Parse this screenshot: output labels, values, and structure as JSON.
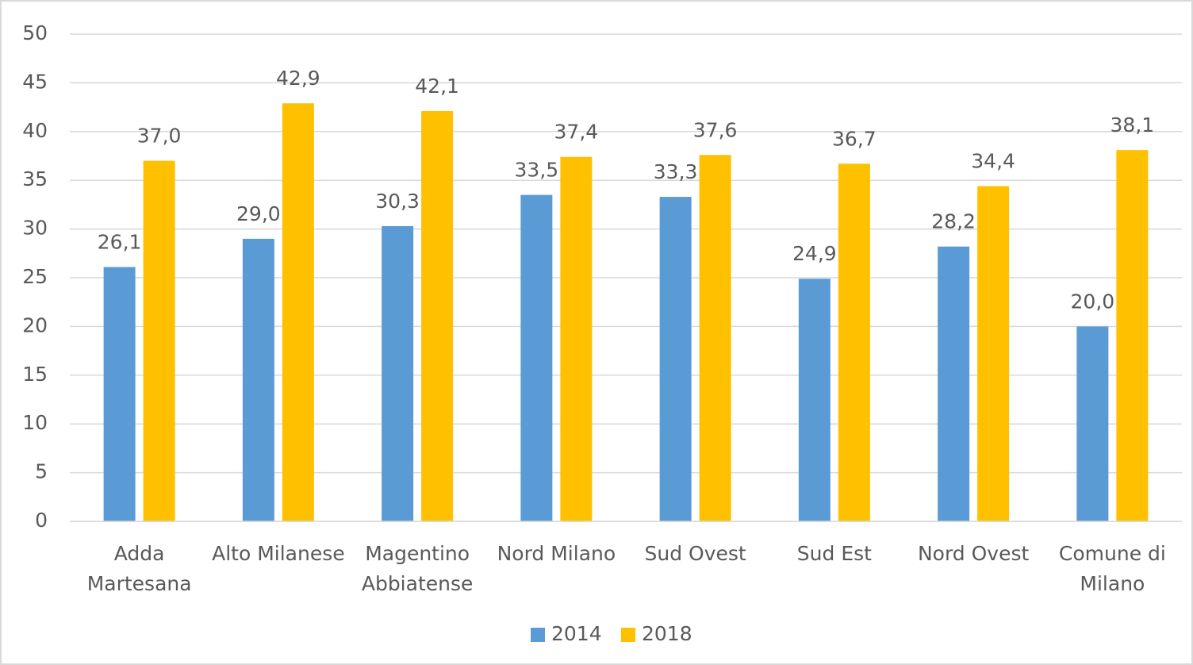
{
  "chart_data": {
    "type": "bar",
    "categories": [
      "Adda Martesana",
      "Alto Milanese",
      "Magentino Abbiatense",
      "Nord Milano",
      "Sud Ovest",
      "Sud Est",
      "Nord Ovest",
      "Comune di Milano"
    ],
    "series": [
      {
        "name": "2014",
        "color": "#5b9bd5",
        "values": [
          26.1,
          29.0,
          30.3,
          33.5,
          33.3,
          24.9,
          28.2,
          20.0
        ],
        "value_labels": [
          "26,1",
          "29,0",
          "30,3",
          "33,5",
          "33,3",
          "24,9",
          "28,2",
          "20,0"
        ]
      },
      {
        "name": "2018",
        "color": "#ffc000",
        "values": [
          37.0,
          42.9,
          42.1,
          37.4,
          37.6,
          36.7,
          34.4,
          38.1
        ],
        "value_labels": [
          "37,0",
          "42,9",
          "42,1",
          "37,4",
          "37,6",
          "36,7",
          "34,4",
          "38,1"
        ]
      }
    ],
    "ylim": [
      0,
      50
    ],
    "yticks": [
      0,
      5,
      10,
      15,
      20,
      25,
      30,
      35,
      40,
      45,
      50
    ],
    "grid": true,
    "legend": "bottom"
  }
}
